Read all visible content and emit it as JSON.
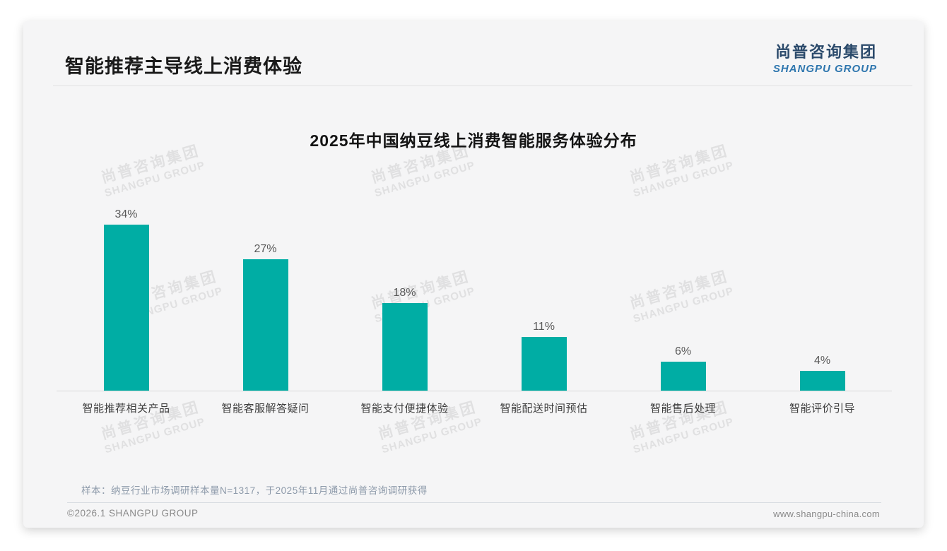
{
  "header": {
    "title": "智能推荐主导线上消费体验",
    "logo_cn": "尚普咨询集团",
    "logo_en": "SHANGPU GROUP"
  },
  "chart_data": {
    "type": "bar",
    "title": "2025年中国纳豆线上消费智能服务体验分布",
    "categories": [
      "智能推荐相关产品",
      "智能客服解答疑问",
      "智能支付便捷体验",
      "智能配送时间预估",
      "智能售后处理",
      "智能评价引导"
    ],
    "values": [
      34,
      27,
      18,
      11,
      6,
      4
    ],
    "value_labels": [
      "34%",
      "27%",
      "18%",
      "11%",
      "6%",
      "4%"
    ],
    "unit": "%",
    "ylim": [
      0,
      40
    ],
    "grid": false,
    "legend": false,
    "bar_color": "#00ada4",
    "value_label_color": "#595959",
    "axis_color": "#d9d9d9"
  },
  "note": "样本：纳豆行业市场调研样本量N=1317，于2025年11月通过尚普咨询调研获得",
  "footer": {
    "copyright": "©2026.1 SHANGPU GROUP",
    "website": "www.shangpu-china.com"
  },
  "watermark": {
    "line1": "尚普咨询集团",
    "line2": "SHANGPU GROUP"
  },
  "colors": {
    "accent_teal": "#00ada4",
    "logo_navy": "#2b4a6b",
    "logo_blue": "#2e76ae",
    "card_bg": "#f5f5f6"
  }
}
